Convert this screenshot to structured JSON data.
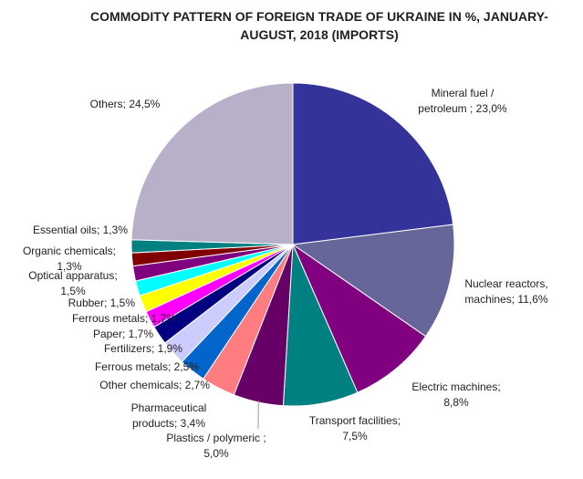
{
  "chart_data": {
    "type": "pie",
    "title_lines": [
      "COMMODITY PATTERN OF FOREIGN TRADE OF UKRAINE IN %, JANUARY-",
      "AUGUST, 2018 (IMPORTS)"
    ],
    "slices": [
      {
        "name": "Mineral fuel / petroleum",
        "value": 23.0,
        "color": "#333399",
        "label_lines": [
          "Mineral fuel /",
          "petroleum ; 23,0%"
        ]
      },
      {
        "name": "Nuclear reactors, machines",
        "value": 11.6,
        "color": "#666699",
        "label_lines": [
          "Nuclear reactors,",
          "machines; 11,6%"
        ]
      },
      {
        "name": "Electric machines",
        "value": 8.8,
        "color": "#800080",
        "label_lines": [
          "Electric machines;",
          "8,8%"
        ]
      },
      {
        "name": "Transport facilities",
        "value": 7.5,
        "color": "#008080",
        "label_lines": [
          "Transport facilities;",
          "7,5%"
        ]
      },
      {
        "name": "Plastics / polymeric",
        "value": 5.0,
        "color": "#660066",
        "label_lines": [
          "Plastics / polymeric ;",
          "5,0%"
        ]
      },
      {
        "name": "Pharmaceutical products",
        "value": 3.4,
        "color": "#ff7c80",
        "label_lines": [
          "Pharmaceutical",
          "products; 3,4%"
        ]
      },
      {
        "name": "Other chemicals",
        "value": 2.7,
        "color": "#0066cc",
        "label_lines": [
          "Other chemicals; 2,7%"
        ]
      },
      {
        "name": "Ferrous metals",
        "value": 2.5,
        "color": "#ccccff",
        "label_lines": [
          "Ferrous metals; 2,5%"
        ]
      },
      {
        "name": "Fertilizers",
        "value": 1.9,
        "color": "#000080",
        "label_lines": [
          "Fertilizers; 1,9%"
        ]
      },
      {
        "name": "Paper",
        "value": 1.7,
        "color": "#ff00ff",
        "label_lines": [
          "Paper; 1,7%"
        ]
      },
      {
        "name": "Ferrous metals",
        "value": 1.7,
        "color": "#ffff00",
        "label_lines": [
          "Ferrous metals; 1,7%"
        ]
      },
      {
        "name": "Rubber",
        "value": 1.5,
        "color": "#00ffff",
        "label_lines": [
          "Rubber; 1,5%"
        ]
      },
      {
        "name": "Optical apparatus",
        "value": 1.5,
        "color": "#800080",
        "label_lines": [
          "Optical apparatus;",
          "1,5%"
        ]
      },
      {
        "name": "Organic chemicals",
        "value": 1.3,
        "color": "#800000",
        "label_lines": [
          "Organic chemicals;",
          "1,3%"
        ]
      },
      {
        "name": "Essential oils",
        "value": 1.3,
        "color": "#008080",
        "label_lines": [
          "Essential oils; 1,3%"
        ]
      },
      {
        "name": "Others",
        "value": 24.5,
        "color": "#b8afc8",
        "label_lines": [
          "Others; 24,5%"
        ]
      }
    ],
    "start_angle_deg": 0,
    "direction": "clockwise",
    "legend": "none"
  }
}
